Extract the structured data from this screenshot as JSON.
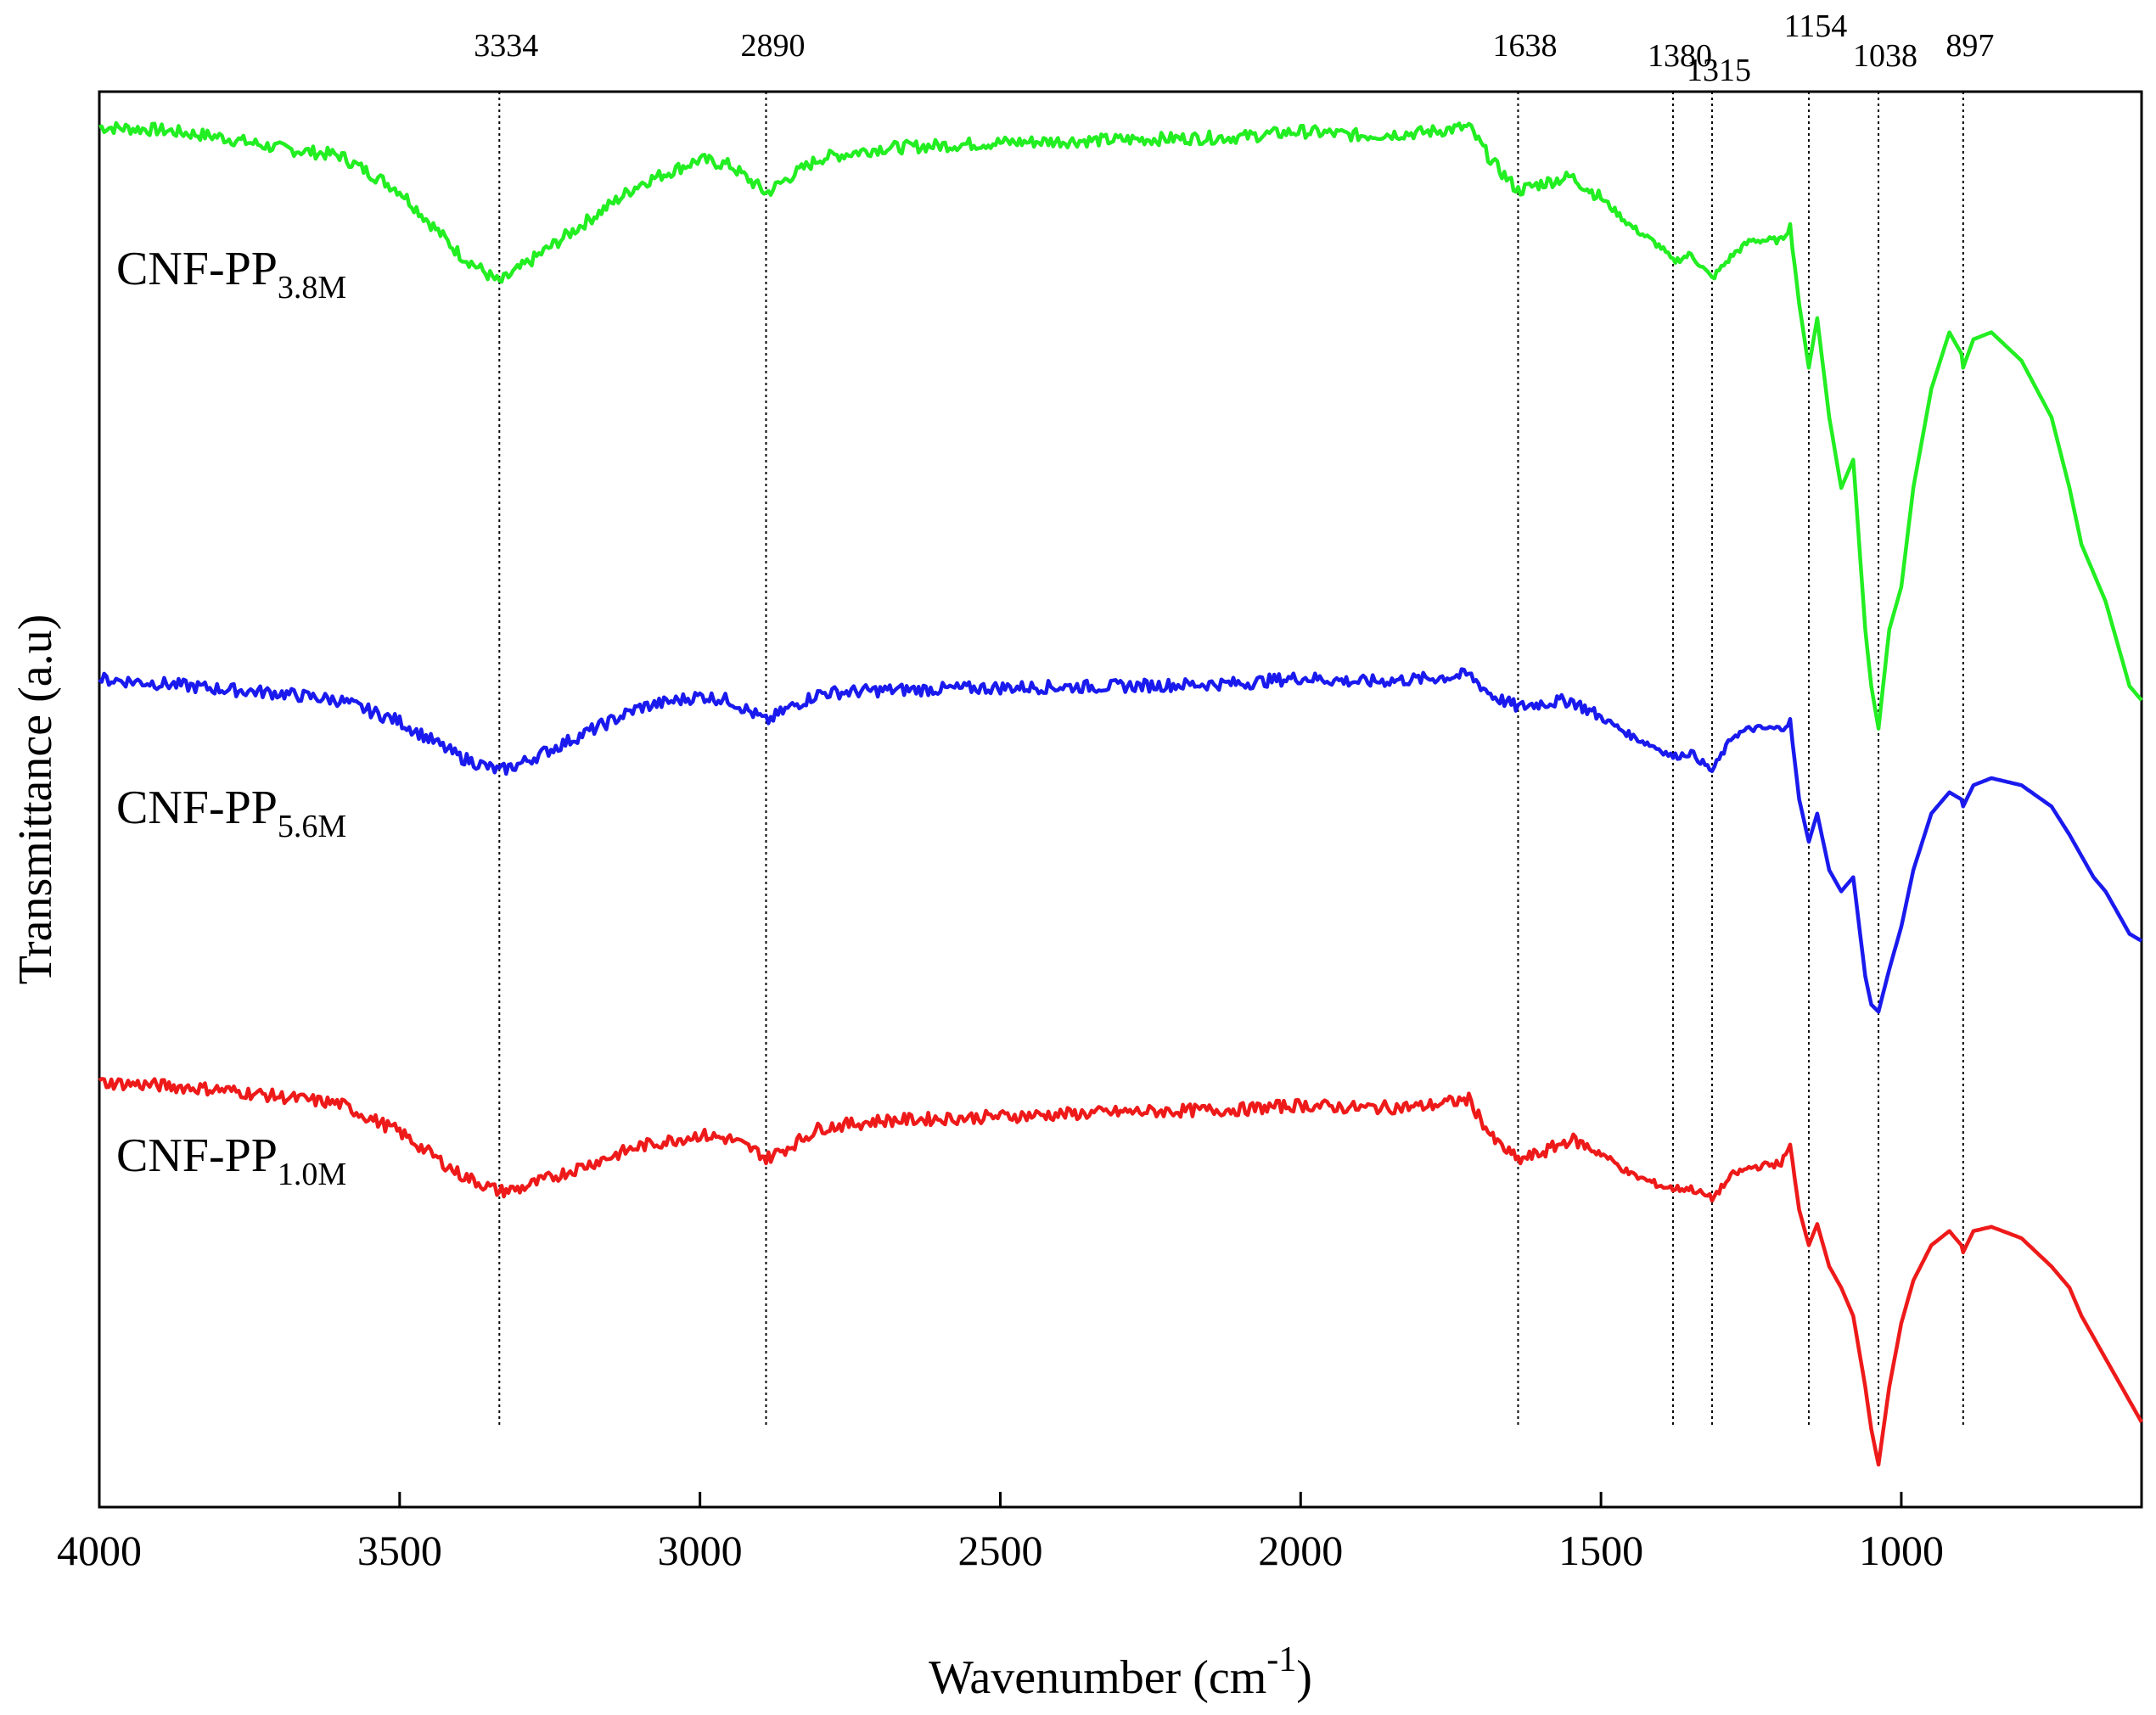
{
  "chart_data": {
    "type": "line",
    "title": "",
    "xlabel": "Wavenumber (cm",
    "xlabel_superscript": "-1",
    "xlabel_close": ")",
    "ylabel": "Transmittance (a.u)",
    "xlim": [
      4000,
      600
    ],
    "x_reversed": true,
    "y_ticks_shown": false,
    "grid": false,
    "legend": "inline labels near left of each curve",
    "x_ticks": [
      4000,
      3500,
      3000,
      2500,
      2000,
      1500,
      1000
    ],
    "peaks": [
      {
        "label": "3334",
        "x": 3334
      },
      {
        "label": "2890",
        "x": 2890
      },
      {
        "label": "1638",
        "x": 1638
      },
      {
        "label": "1380",
        "x": 1380
      },
      {
        "label": "1315",
        "x": 1315
      },
      {
        "label": "1154",
        "x": 1154
      },
      {
        "label": "1038",
        "x": 1038
      },
      {
        "label": "897",
        "x": 897
      }
    ],
    "series": [
      {
        "name": "CNF-PP",
        "subscript": "3.8M",
        "color": "#22ee22",
        "x": [
          4000,
          3900,
          3800,
          3700,
          3600,
          3500,
          3400,
          3334,
          3300,
          3200,
          3100,
          3000,
          2950,
          2900,
          2890,
          2850,
          2800,
          2700,
          2500,
          2300,
          2100,
          2000,
          1900,
          1800,
          1720,
          1680,
          1638,
          1600,
          1550,
          1500,
          1450,
          1400,
          1380,
          1350,
          1315,
          1280,
          1250,
          1200,
          1185,
          1170,
          1154,
          1140,
          1120,
          1100,
          1080,
          1060,
          1050,
          1038,
          1020,
          1000,
          980,
          950,
          920,
          900,
          897,
          880,
          850,
          800,
          750,
          720,
          700,
          680,
          660,
          640,
          620,
          600
        ],
        "y": [
          97.5,
          97.3,
          96.8,
          96.0,
          95.5,
          93.0,
          88.5,
          86.5,
          87.5,
          90.5,
          93.5,
          95.2,
          94.8,
          93.2,
          92.8,
          94.0,
          95.3,
          96.0,
          96.4,
          96.6,
          96.8,
          97.2,
          96.9,
          97.1,
          97.5,
          95.0,
          93.0,
          93.5,
          94.0,
          92.5,
          90.5,
          89.0,
          88.0,
          88.5,
          86.8,
          88.5,
          89.5,
          89.5,
          90.5,
          85.0,
          80.5,
          84.0,
          77.0,
          72.0,
          74.0,
          62.0,
          58.0,
          55.0,
          62.0,
          65.0,
          72.0,
          79.0,
          83.0,
          81.5,
          80.5,
          82.5,
          83.0,
          81.0,
          77.0,
          72.0,
          68.0,
          66.0,
          64.0,
          61.0,
          58.0,
          57.0
        ]
      },
      {
        "name": "CNF-PP",
        "subscript": "5.6M",
        "color": "#1a1aee",
        "x": [
          4000,
          3900,
          3800,
          3700,
          3600,
          3500,
          3400,
          3334,
          3300,
          3200,
          3100,
          3000,
          2950,
          2900,
          2890,
          2850,
          2800,
          2700,
          2500,
          2300,
          2100,
          2000,
          1900,
          1800,
          1720,
          1680,
          1638,
          1600,
          1550,
          1500,
          1450,
          1400,
          1380,
          1350,
          1315,
          1280,
          1250,
          1200,
          1185,
          1170,
          1154,
          1140,
          1120,
          1100,
          1080,
          1060,
          1050,
          1038,
          1020,
          1000,
          980,
          950,
          920,
          900,
          897,
          880,
          850,
          800,
          750,
          720,
          700,
          680,
          660,
          640,
          620,
          600
        ],
        "y": [
          58.5,
          58.2,
          57.8,
          57.5,
          57.0,
          55.5,
          53.0,
          52.0,
          52.5,
          54.5,
          56.5,
          57.3,
          57.0,
          55.8,
          55.5,
          56.5,
          57.5,
          57.7,
          57.9,
          58.0,
          58.2,
          58.6,
          58.3,
          58.5,
          58.8,
          57.3,
          56.5,
          56.8,
          57.0,
          55.8,
          54.5,
          53.5,
          53.0,
          53.3,
          52.0,
          54.5,
          55.0,
          55.0,
          55.5,
          50.0,
          47.0,
          49.0,
          45.0,
          43.5,
          44.5,
          37.5,
          35.5,
          35.0,
          38.0,
          41.0,
          45.0,
          49.0,
          50.5,
          50.0,
          49.5,
          51.0,
          51.5,
          51.0,
          49.5,
          47.5,
          46.0,
          44.5,
          43.5,
          42.0,
          40.5,
          40.0
        ]
      },
      {
        "name": "CNF-PP",
        "subscript": "1.0M",
        "color": "#ee1a1a",
        "x": [
          4000,
          3900,
          3800,
          3700,
          3600,
          3500,
          3400,
          3334,
          3300,
          3200,
          3100,
          3000,
          2950,
          2900,
          2890,
          2850,
          2800,
          2700,
          2500,
          2300,
          2100,
          2000,
          1900,
          1800,
          1720,
          1680,
          1638,
          1600,
          1550,
          1500,
          1450,
          1400,
          1380,
          1350,
          1315,
          1280,
          1250,
          1200,
          1185,
          1170,
          1154,
          1140,
          1120,
          1100,
          1080,
          1060,
          1050,
          1038,
          1020,
          1000,
          980,
          950,
          920,
          900,
          897,
          880,
          850,
          800,
          750,
          720,
          700,
          680,
          660,
          640,
          620,
          600
        ],
        "y": [
          30.0,
          29.8,
          29.5,
          29.0,
          28.5,
          26.5,
          23.5,
          22.3,
          22.5,
          24.0,
          25.5,
          26.3,
          26.0,
          25.0,
          24.6,
          25.5,
          26.8,
          27.3,
          27.6,
          27.9,
          28.1,
          28.4,
          28.2,
          28.3,
          28.8,
          26.0,
          24.5,
          25.0,
          26.0,
          25.0,
          23.5,
          22.7,
          22.5,
          22.5,
          21.8,
          23.5,
          24.0,
          24.3,
          25.5,
          21.0,
          18.5,
          20.0,
          17.0,
          15.5,
          13.5,
          8.5,
          5.5,
          3.0,
          8.5,
          13.0,
          16.0,
          18.5,
          19.5,
          18.5,
          18.0,
          19.5,
          19.8,
          19.0,
          17.0,
          15.5,
          13.5,
          12.0,
          10.5,
          9.0,
          7.5,
          6.0
        ]
      }
    ]
  }
}
